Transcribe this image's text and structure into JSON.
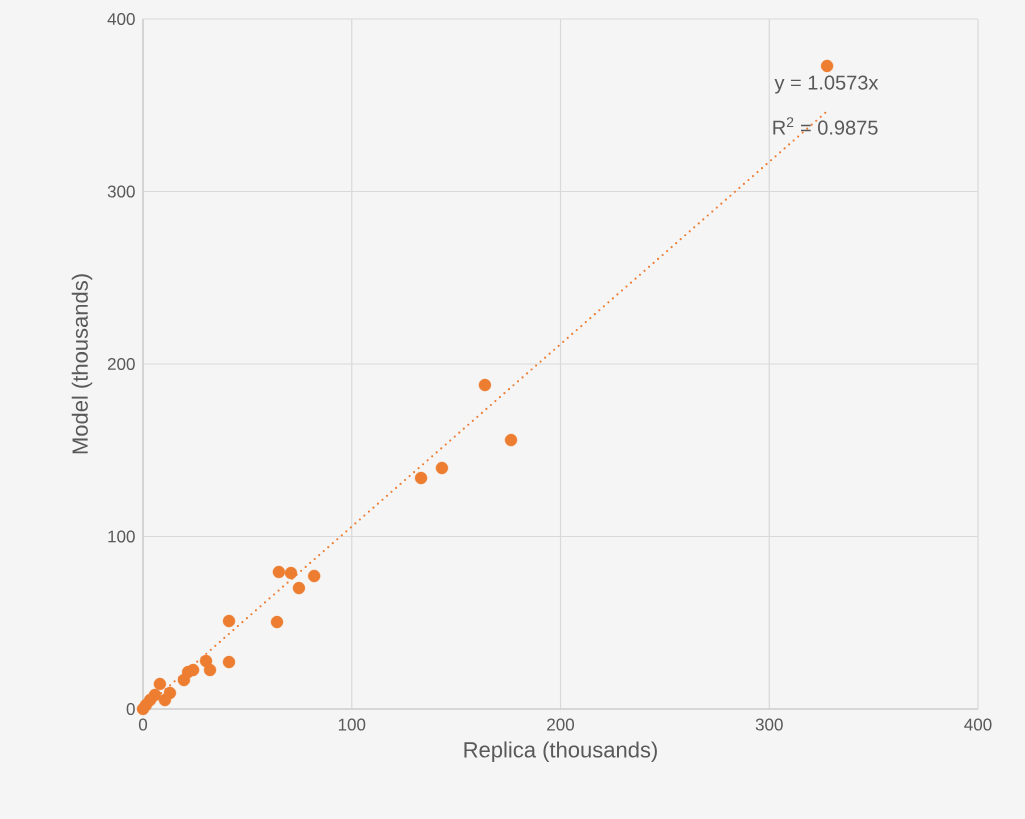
{
  "chart_data": {
    "type": "scatter",
    "xlabel": "Replica (thousands)",
    "ylabel": "Model (thousands)",
    "annotations": [
      "y = 1.0573x",
      "R$^{2}$ = 0.9875"
    ],
    "xlim": [
      0,
      400
    ],
    "ylim": [
      0,
      400
    ],
    "xticks": [
      0,
      100,
      200,
      300,
      400
    ],
    "yticks": [
      0,
      100,
      200,
      300,
      400
    ],
    "grid": true,
    "marker": "circle",
    "series": [
      {
        "color": "#ed7d31",
        "x": [
          327.7,
          163.8,
          176.3,
          143.2,
          133.2,
          65.1,
          70.9,
          82.0,
          74.7,
          41.2,
          64.2,
          41.2,
          30.2,
          32.1,
          24.0,
          21.6,
          19.6,
          8.1,
          12.9,
          10.5,
          5.7,
          3.4,
          1.4,
          0
        ],
        "values": [
          372.8,
          187.8,
          155.9,
          139.7,
          133.9,
          79.4,
          78.8,
          77.1,
          70.1,
          51.0,
          50.4,
          27.2,
          27.8,
          22.6,
          22.6,
          21.4,
          16.8,
          14.5,
          9.3,
          5.2,
          8.1,
          5.2,
          2.3,
          0
        ]
      },
      {
        "type": "line",
        "color": "#ed7d31",
        "line_style": "dotted",
        "marker": "none",
        "x": [
          0,
          327.7
        ],
        "values": [
          0,
          346.5
        ]
      }
    ]
  }
}
